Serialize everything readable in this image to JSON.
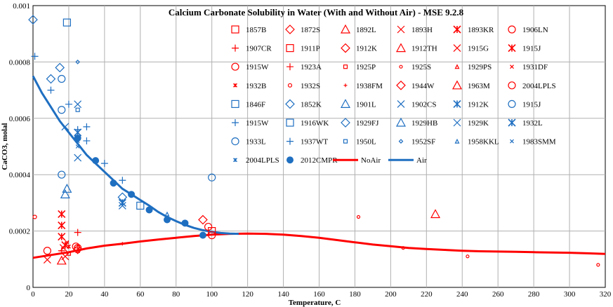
{
  "chart_data": {
    "type": "scatter",
    "title": "Calcium Carbonate Solubility in Water (With and Without Air) - MSE 9.2.8",
    "xlabel": "Temperature, C",
    "ylabel": "CaCO3, molal",
    "xlim": [
      0,
      320
    ],
    "ylim": [
      0,
      0.001
    ],
    "x_ticks": [
      "0",
      "20",
      "40",
      "60",
      "80",
      "100",
      "120",
      "140",
      "160",
      "180",
      "200",
      "220",
      "240",
      "260",
      "280",
      "300",
      "320"
    ],
    "y_ticks": [
      "0",
      "0.0002",
      "0.0004",
      "0.0006",
      "0.0008",
      "0.001"
    ],
    "grid": true,
    "legend_placement": "top-right inside",
    "colors": {
      "noair": "#ff0000",
      "air": "#1f6fc1"
    },
    "series": [
      {
        "name": "1857B",
        "color": "#ff0000",
        "marker": "square",
        "points": []
      },
      {
        "name": "1872S",
        "color": "#ff0000",
        "marker": "diamond",
        "points": []
      },
      {
        "name": "1892L",
        "color": "#ff0000",
        "marker": "triangle",
        "points": [
          [
            225,
            0.00026
          ]
        ]
      },
      {
        "name": "1893H",
        "color": "#ff0000",
        "marker": "x",
        "points": [
          [
            8,
            9.8e-05
          ],
          [
            18,
            0.00011
          ]
        ]
      },
      {
        "name": "1893KR",
        "color": "#ff0000",
        "marker": "asterisk",
        "points": [
          [
            16,
            0.00026
          ],
          [
            16,
            0.00022
          ],
          [
            16,
            0.00018
          ]
        ]
      },
      {
        "name": "1906LN",
        "color": "#ff0000",
        "marker": "circle",
        "points": [
          [
            8,
            0.00013
          ],
          [
            98,
            0.000215
          ]
        ]
      },
      {
        "name": "1907CR",
        "color": "#ff0000",
        "marker": "plus",
        "points": [
          [
            16,
            0.00013
          ],
          [
            25,
            0.00014
          ]
        ]
      },
      {
        "name": "1911P",
        "color": "#ff0000",
        "marker": "square",
        "points": [
          [
            100,
            0.0002
          ]
        ]
      },
      {
        "name": "1912K",
        "color": "#ff0000",
        "marker": "diamond",
        "points": [
          [
            95,
            0.00024
          ]
        ]
      },
      {
        "name": "1912TH",
        "color": "#ff0000",
        "marker": "triangle",
        "points": [
          [
            16,
            9.5e-05
          ]
        ]
      },
      {
        "name": "1915G",
        "color": "#ff0000",
        "marker": "x",
        "points": [
          [
            17,
            0.00014
          ]
        ]
      },
      {
        "name": "1915J",
        "color": "#ff0000",
        "marker": "asterisk",
        "points": [
          [
            18,
            0.00015
          ]
        ]
      },
      {
        "name": "1915W",
        "color": "#ff0000",
        "marker": "circle",
        "points": [
          [
            25,
            0.00014
          ]
        ]
      },
      {
        "name": "1923A",
        "color": "#ff0000",
        "marker": "plus",
        "points": [
          [
            25,
            0.000195
          ]
        ]
      },
      {
        "name": "1925P",
        "color": "#ff0000",
        "marker": "smallsquare",
        "points": [
          [
            20,
            0.00012
          ]
        ]
      },
      {
        "name": "1925S",
        "color": "#ff0000",
        "marker": "dot",
        "points": [
          [
            182,
            0.00025
          ],
          [
            207,
            0.00014
          ],
          [
            243,
            0.00011
          ],
          [
            316,
            8e-05
          ]
        ]
      },
      {
        "name": "1929PS",
        "color": "#ff0000",
        "marker": "smalltriangle",
        "points": [
          [
            25,
            0.00013
          ]
        ]
      },
      {
        "name": "1931DF",
        "color": "#ff0000",
        "marker": "smallx",
        "points": [
          [
            19,
            0.00016
          ]
        ]
      },
      {
        "name": "1932B",
        "color": "#ff0000",
        "marker": "smallasterisk",
        "points": [
          [
            20,
            0.000145
          ]
        ]
      },
      {
        "name": "1932S",
        "color": "#ff0000",
        "marker": "smallcircle",
        "points": [
          [
            1,
            0.00025
          ]
        ]
      },
      {
        "name": "1938FM",
        "color": "#ff0000",
        "marker": "star",
        "points": [
          [
            50,
            0.000155
          ]
        ]
      },
      {
        "name": "1944W",
        "color": "#ff0000",
        "marker": "diamond",
        "points": [
          [
            25,
            0.000135
          ]
        ]
      },
      {
        "name": "1963M",
        "color": "#ff0000",
        "marker": "triangle",
        "points": []
      },
      {
        "name": "2004LPLS",
        "color": "#ff0000",
        "marker": "circle",
        "points": [
          [
            24,
            0.000145
          ],
          [
            100,
            0.000185
          ]
        ]
      },
      {
        "name": "1846F",
        "color": "#1f6fc1",
        "marker": "square",
        "points": [
          [
            19,
            0.00094
          ]
        ]
      },
      {
        "name": "1852K",
        "color": "#1f6fc1",
        "marker": "diamond",
        "points": [
          [
            0,
            0.00095
          ],
          [
            15,
            0.00078
          ]
        ]
      },
      {
        "name": "1901L",
        "color": "#1f6fc1",
        "marker": "triangle",
        "points": [
          [
            19,
            0.00035
          ]
        ]
      },
      {
        "name": "1902CS",
        "color": "#1f6fc1",
        "marker": "x",
        "points": [
          [
            25,
            0.00065
          ],
          [
            25,
            0.00046
          ],
          [
            50,
            0.00029
          ]
        ]
      },
      {
        "name": "1912K",
        "color": "#1f6fc1",
        "marker": "asterisk",
        "points": [
          [
            25,
            0.00055
          ]
        ]
      },
      {
        "name": "1915J",
        "color": "#1f6fc1",
        "marker": "circle",
        "points": [
          [
            16,
            0.00074
          ],
          [
            16,
            0.00063
          ],
          [
            16,
            0.0004
          ]
        ]
      },
      {
        "name": "1915W",
        "color": "#1f6fc1",
        "marker": "plus",
        "points": [
          [
            10,
            0.0007
          ],
          [
            20,
            0.00065
          ],
          [
            30,
            0.00057
          ],
          [
            40,
            0.00044
          ],
          [
            50,
            0.00038
          ]
        ]
      },
      {
        "name": "1916WK",
        "color": "#1f6fc1",
        "marker": "square",
        "points": [
          [
            60,
            0.00029
          ]
        ]
      },
      {
        "name": "1929FJ",
        "color": "#1f6fc1",
        "marker": "diamond",
        "points": [
          [
            10,
            0.00074
          ],
          [
            50,
            0.00032
          ]
        ]
      },
      {
        "name": "1929HB",
        "color": "#1f6fc1",
        "marker": "triangle",
        "points": [
          [
            18,
            0.00033
          ]
        ]
      },
      {
        "name": "1929K",
        "color": "#1f6fc1",
        "marker": "x",
        "points": [
          [
            18,
            0.00057
          ]
        ]
      },
      {
        "name": "1932L",
        "color": "#1f6fc1",
        "marker": "asterisk",
        "points": [
          [
            50,
            0.0003
          ]
        ]
      },
      {
        "name": "1933L",
        "color": "#1f6fc1",
        "marker": "circle",
        "points": [
          [
            100,
            0.00039
          ]
        ]
      },
      {
        "name": "1937WT",
        "color": "#1f6fc1",
        "marker": "plus",
        "points": [
          [
            1,
            0.00082
          ],
          [
            25,
            0.00056
          ],
          [
            30,
            0.00052
          ]
        ]
      },
      {
        "name": "1950L",
        "color": "#1f6fc1",
        "marker": "smallsquare",
        "points": [
          [
            25,
            0.00063
          ]
        ]
      },
      {
        "name": "1952SF",
        "color": "#1f6fc1",
        "marker": "smalldiamond",
        "points": [
          [
            25,
            0.0008
          ]
        ]
      },
      {
        "name": "1958KKL",
        "color": "#1f6fc1",
        "marker": "smalltriangle",
        "points": [
          [
            75,
            0.00026
          ]
        ]
      },
      {
        "name": "1983SMM",
        "color": "#1f6fc1",
        "marker": "smallx",
        "points": [
          [
            25,
            0.0005
          ]
        ]
      },
      {
        "name": "2004LPLS",
        "color": "#1f6fc1",
        "marker": "smallasterisk",
        "points": [
          [
            25,
            0.00052
          ]
        ]
      },
      {
        "name": "2012CMPR",
        "color": "#1f6fc1",
        "marker": "filledcircle",
        "points": [
          [
            25,
            0.00053
          ],
          [
            35,
            0.00045
          ],
          [
            45,
            0.00037
          ],
          [
            55,
            0.00033
          ],
          [
            65,
            0.000275
          ],
          [
            75,
            0.00024
          ],
          [
            85,
            0.000228
          ],
          [
            95,
            0.000185
          ]
        ]
      }
    ],
    "lines": [
      {
        "name": "NoAir",
        "color": "#ff0000",
        "points": [
          [
            0,
            0.000105
          ],
          [
            10,
            0.000115
          ],
          [
            20,
            0.000125
          ],
          [
            30,
            0.000138
          ],
          [
            40,
            0.000148
          ],
          [
            50,
            0.000155
          ],
          [
            60,
            0.000163
          ],
          [
            70,
            0.00017
          ],
          [
            80,
            0.000176
          ],
          [
            90,
            0.000182
          ],
          [
            100,
            0.000187
          ],
          [
            110,
            0.00019
          ],
          [
            120,
            0.000191
          ],
          [
            130,
            0.00019
          ],
          [
            140,
            0.000187
          ],
          [
            150,
            0.000182
          ],
          [
            160,
            0.000176
          ],
          [
            170,
            0.000168
          ],
          [
            180,
            0.00016
          ],
          [
            190,
            0.000152
          ],
          [
            200,
            0.000146
          ],
          [
            210,
            0.00014
          ],
          [
            220,
            0.000136
          ],
          [
            230,
            0.000133
          ],
          [
            240,
            0.00013
          ],
          [
            250,
            0.000128
          ],
          [
            260,
            0.000127
          ],
          [
            270,
            0.000126
          ],
          [
            280,
            0.000125
          ],
          [
            290,
            0.000124
          ],
          [
            300,
            0.000123
          ],
          [
            310,
            0.000121
          ],
          [
            320,
            0.000119
          ]
        ]
      },
      {
        "name": "Air",
        "color": "#1f6fc1",
        "points": [
          [
            0,
            0.00075
          ],
          [
            5,
            0.00069
          ],
          [
            10,
            0.00064
          ],
          [
            15,
            0.00059
          ],
          [
            20,
            0.00055
          ],
          [
            25,
            0.00051
          ],
          [
            30,
            0.00047
          ],
          [
            35,
            0.00044
          ],
          [
            40,
            0.00041
          ],
          [
            45,
            0.00038
          ],
          [
            50,
            0.00035
          ],
          [
            55,
            0.00033
          ],
          [
            60,
            0.00031
          ],
          [
            65,
            0.00029
          ],
          [
            70,
            0.000268
          ],
          [
            75,
            0.00025
          ],
          [
            80,
            0.000235
          ],
          [
            85,
            0.000222
          ],
          [
            90,
            0.000211
          ],
          [
            95,
            0.000203
          ],
          [
            100,
            0.000197
          ],
          [
            105,
            0.000193
          ],
          [
            110,
            0.000191
          ],
          [
            115,
            0.00019
          ]
        ]
      }
    ],
    "legend_columns": 6
  }
}
